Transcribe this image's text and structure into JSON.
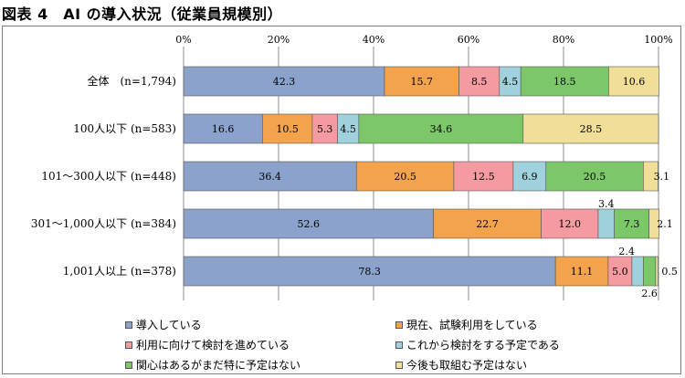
{
  "figure": {
    "title": "図表 4　AI の導入状況（従業員規模別）"
  },
  "colors": {
    "導入している": "#8aa2cc",
    "現在、試験利用をしている": "#f3a34c",
    "利用に向けて検討を進めている": "#f59aa0",
    "これから検討をする予定である": "#9fd2dc",
    "関心はあるがまだ特に予定はない": "#7cc768",
    "今後も取組む予定はない": "#f1de97"
  },
  "chart_data": {
    "type": "bar",
    "orientation": "horizontal",
    "stacked": "percent",
    "title": "",
    "xlim": [
      0,
      100
    ],
    "xticks": [
      "0%",
      "20%",
      "40%",
      "60%",
      "80%",
      "100%"
    ],
    "grid": true,
    "legend_position": "bottom",
    "categories": [
      "全体　(n=1,794)",
      "100人以下 (n=583)",
      "101～300人以下 (n=448)",
      "301～1,000人以下 (n=384)",
      "1,001人以上 (n=378)"
    ],
    "series": [
      {
        "name": "導入している",
        "values": [
          42.3,
          16.6,
          36.4,
          52.6,
          78.3
        ]
      },
      {
        "name": "現在、試験利用をしている",
        "values": [
          15.7,
          10.5,
          20.5,
          22.7,
          11.1
        ]
      },
      {
        "name": "利用に向けて検討を進めている",
        "values": [
          8.5,
          5.3,
          12.5,
          12.0,
          5.0
        ]
      },
      {
        "name": "これから検討をする予定である",
        "values": [
          4.5,
          4.5,
          6.9,
          3.4,
          2.4
        ]
      },
      {
        "name": "関心はあるがまだ特に予定はない",
        "values": [
          18.5,
          34.6,
          20.5,
          7.3,
          2.6
        ]
      },
      {
        "name": "今後も取組む予定はない",
        "values": [
          10.6,
          28.5,
          3.1,
          2.1,
          0.5
        ]
      }
    ]
  }
}
